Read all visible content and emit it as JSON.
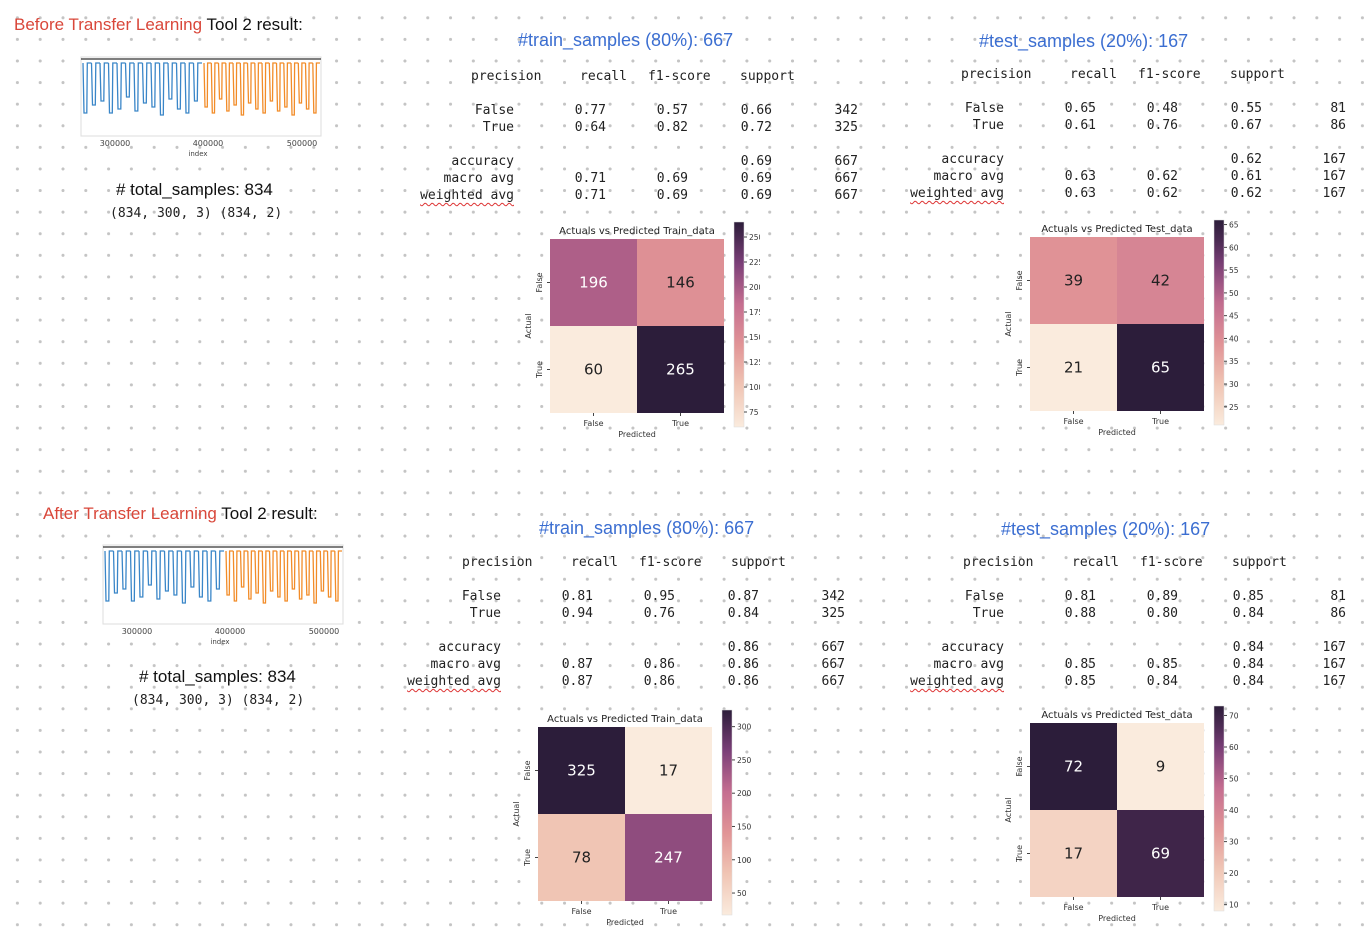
{
  "sections": [
    {
      "heading_prefix": "Before Transfer Learning",
      "heading_suffix": "Tool 2 result:",
      "thumbnail": {
        "x_ticks": [
          "300000",
          "400000",
          "500000"
        ],
        "x_label": "index",
        "colors": {
          "series_a": "#3a86c8",
          "series_b": "#f28c28"
        }
      },
      "total_samples_text": "# total_samples: 834",
      "shapes_text": "(834, 300, 3) (834, 2)",
      "panels": [
        {
          "title": "#train_samples (80%): 667",
          "report": {
            "headers": [
              "precision",
              "recall",
              "f1-score",
              "support"
            ],
            "rows": [
              {
                "label": "False",
                "values": [
                  "0.77",
                  "0.57",
                  "0.66",
                  "342"
                ]
              },
              {
                "label": "True",
                "values": [
                  "0.64",
                  "0.82",
                  "0.72",
                  "325"
                ]
              }
            ],
            "summary": [
              {
                "label": "accuracy",
                "values": [
                  "",
                  "",
                  "0.69",
                  "667"
                ]
              },
              {
                "label": "macro avg",
                "values": [
                  "0.71",
                  "0.69",
                  "0.69",
                  "667"
                ]
              },
              {
                "label": "weighted avg",
                "values": [
                  "0.71",
                  "0.69",
                  "0.69",
                  "667"
                ]
              }
            ]
          },
          "heatmap": {
            "title": "Actuals vs Predicted Train_data",
            "xlabel": "Predicted",
            "ylabel": "Actual",
            "x_ticks": [
              "False",
              "True"
            ],
            "y_ticks": [
              "False",
              "True"
            ],
            "cells": [
              [
                "196",
                "146"
              ],
              [
                "60",
                "265"
              ]
            ],
            "colorbar_ticks": [
              "250",
              "225",
              "200",
              "175",
              "150",
              "125",
              "100",
              "75"
            ]
          }
        },
        {
          "title": "#test_samples (20%): 167",
          "report": {
            "headers": [
              "precision",
              "recall",
              "f1-score",
              "support"
            ],
            "rows": [
              {
                "label": "False",
                "values": [
                  "0.65",
                  "0.48",
                  "0.55",
                  "81"
                ]
              },
              {
                "label": "True",
                "values": [
                  "0.61",
                  "0.76",
                  "0.67",
                  "86"
                ]
              }
            ],
            "summary": [
              {
                "label": "accuracy",
                "values": [
                  "",
                  "",
                  "0.62",
                  "167"
                ]
              },
              {
                "label": "macro avg",
                "values": [
                  "0.63",
                  "0.62",
                  "0.61",
                  "167"
                ]
              },
              {
                "label": "weighted avg",
                "values": [
                  "0.63",
                  "0.62",
                  "0.62",
                  "167"
                ]
              }
            ]
          },
          "heatmap": {
            "title": "Actuals vs Predicted Test_data",
            "xlabel": "Predicted",
            "ylabel": "Actual",
            "x_ticks": [
              "False",
              "True"
            ],
            "y_ticks": [
              "False",
              "True"
            ],
            "cells": [
              [
                "39",
                "42"
              ],
              [
                "21",
                "65"
              ]
            ],
            "colorbar_ticks": [
              "65",
              "60",
              "55",
              "50",
              "45",
              "40",
              "35",
              "30",
              "25"
            ]
          }
        }
      ]
    },
    {
      "heading_prefix": "After Transfer Learning",
      "heading_suffix": "Tool 2 result:",
      "thumbnail": {
        "x_ticks": [
          "300000",
          "400000",
          "500000"
        ],
        "x_label": "index",
        "colors": {
          "series_a": "#3a86c8",
          "series_b": "#f28c28"
        }
      },
      "total_samples_text": "# total_samples: 834",
      "shapes_text": "(834, 300, 3) (834, 2)",
      "panels": [
        {
          "title": "#train_samples (80%): 667",
          "report": {
            "headers": [
              "precision",
              "recall",
              "f1-score",
              "support"
            ],
            "rows": [
              {
                "label": "False",
                "values": [
                  "0.81",
                  "0.95",
                  "0.87",
                  "342"
                ]
              },
              {
                "label": "True",
                "values": [
                  "0.94",
                  "0.76",
                  "0.84",
                  "325"
                ]
              }
            ],
            "summary": [
              {
                "label": "accuracy",
                "values": [
                  "",
                  "",
                  "0.86",
                  "667"
                ]
              },
              {
                "label": "macro avg",
                "values": [
                  "0.87",
                  "0.86",
                  "0.86",
                  "667"
                ]
              },
              {
                "label": "weighted avg",
                "values": [
                  "0.87",
                  "0.86",
                  "0.86",
                  "667"
                ]
              }
            ]
          },
          "heatmap": {
            "title": "Actuals vs Predicted Train_data",
            "xlabel": "Predicted",
            "ylabel": "Actual",
            "x_ticks": [
              "False",
              "True"
            ],
            "y_ticks": [
              "False",
              "True"
            ],
            "cells": [
              [
                "325",
                "17"
              ],
              [
                "78",
                "247"
              ]
            ],
            "colorbar_ticks": [
              "300",
              "250",
              "200",
              "150",
              "100",
              "50"
            ]
          }
        },
        {
          "title": "#test_samples (20%): 167",
          "report": {
            "headers": [
              "precision",
              "recall",
              "f1-score",
              "support"
            ],
            "rows": [
              {
                "label": "False",
                "values": [
                  "0.81",
                  "0.89",
                  "0.85",
                  "81"
                ]
              },
              {
                "label": "True",
                "values": [
                  "0.88",
                  "0.80",
                  "0.84",
                  "86"
                ]
              }
            ],
            "summary": [
              {
                "label": "accuracy",
                "values": [
                  "",
                  "",
                  "0.84",
                  "167"
                ]
              },
              {
                "label": "macro avg",
                "values": [
                  "0.85",
                  "0.85",
                  "0.84",
                  "167"
                ]
              },
              {
                "label": "weighted avg",
                "values": [
                  "0.85",
                  "0.84",
                  "0.84",
                  "167"
                ]
              }
            ]
          },
          "heatmap": {
            "title": "Actuals vs Predicted Test_data",
            "xlabel": "Predicted",
            "ylabel": "Actual",
            "x_ticks": [
              "False",
              "True"
            ],
            "y_ticks": [
              "False",
              "True"
            ],
            "cells": [
              [
                "72",
                "9"
              ],
              [
                "17",
                "69"
              ]
            ],
            "colorbar_ticks": [
              "70",
              "60",
              "50",
              "40",
              "30",
              "20",
              "10"
            ]
          }
        }
      ]
    }
  ]
}
